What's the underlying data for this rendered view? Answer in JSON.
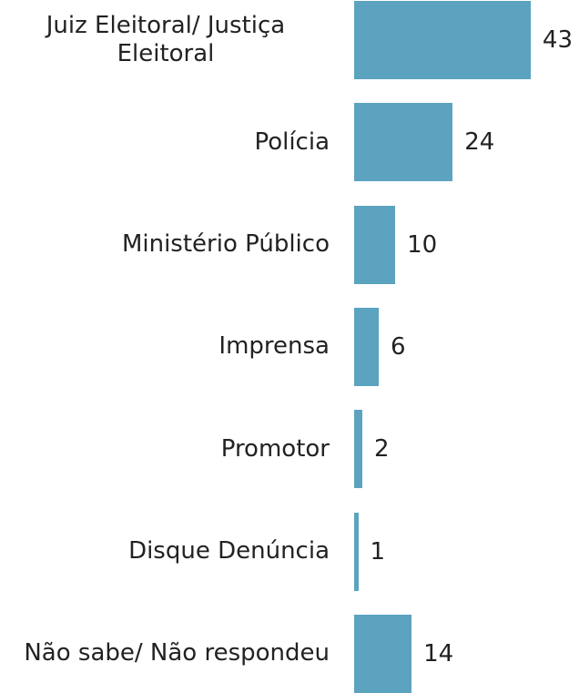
{
  "chart_data": {
    "type": "bar",
    "orientation": "horizontal",
    "categories": [
      "Juiz Eleitoral/ Justiça Eleitoral",
      "Polícia",
      "Ministério Público",
      "Imprensa",
      "Promotor",
      "Disque Denúncia",
      "Não sabe/ Não respondeu"
    ],
    "values": [
      43,
      24,
      10,
      6,
      2,
      1,
      14
    ],
    "color": "#5ba3bf"
  }
}
